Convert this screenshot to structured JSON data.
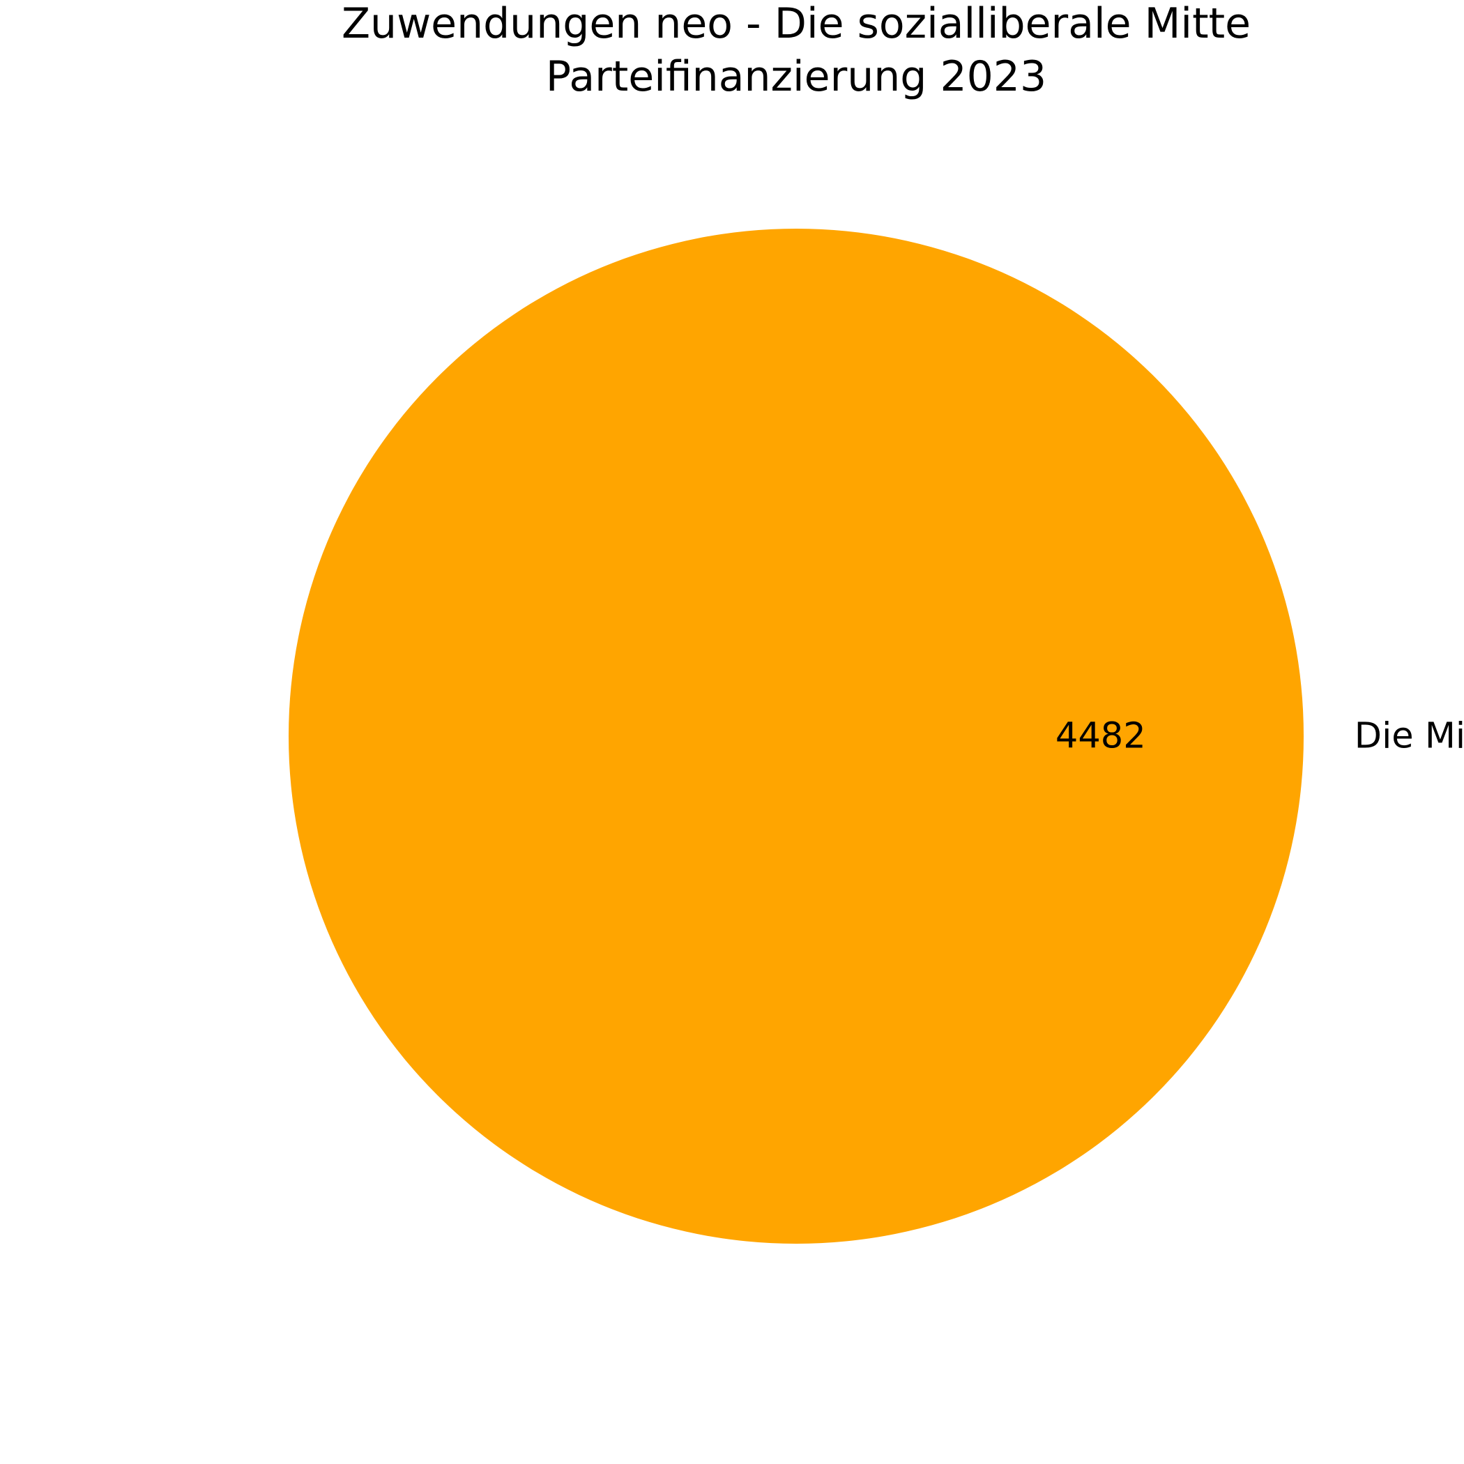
{
  "chart_data": {
    "type": "pie",
    "title": "Zuwendungen neo - Die sozialliberale Mitte",
    "subtitle": "Parteifinanzierung 2023",
    "slices": [
      {
        "label": "Die Mitte",
        "value": 4482,
        "value_label": "4482",
        "color": "#FFA500"
      }
    ],
    "legend": "none"
  }
}
